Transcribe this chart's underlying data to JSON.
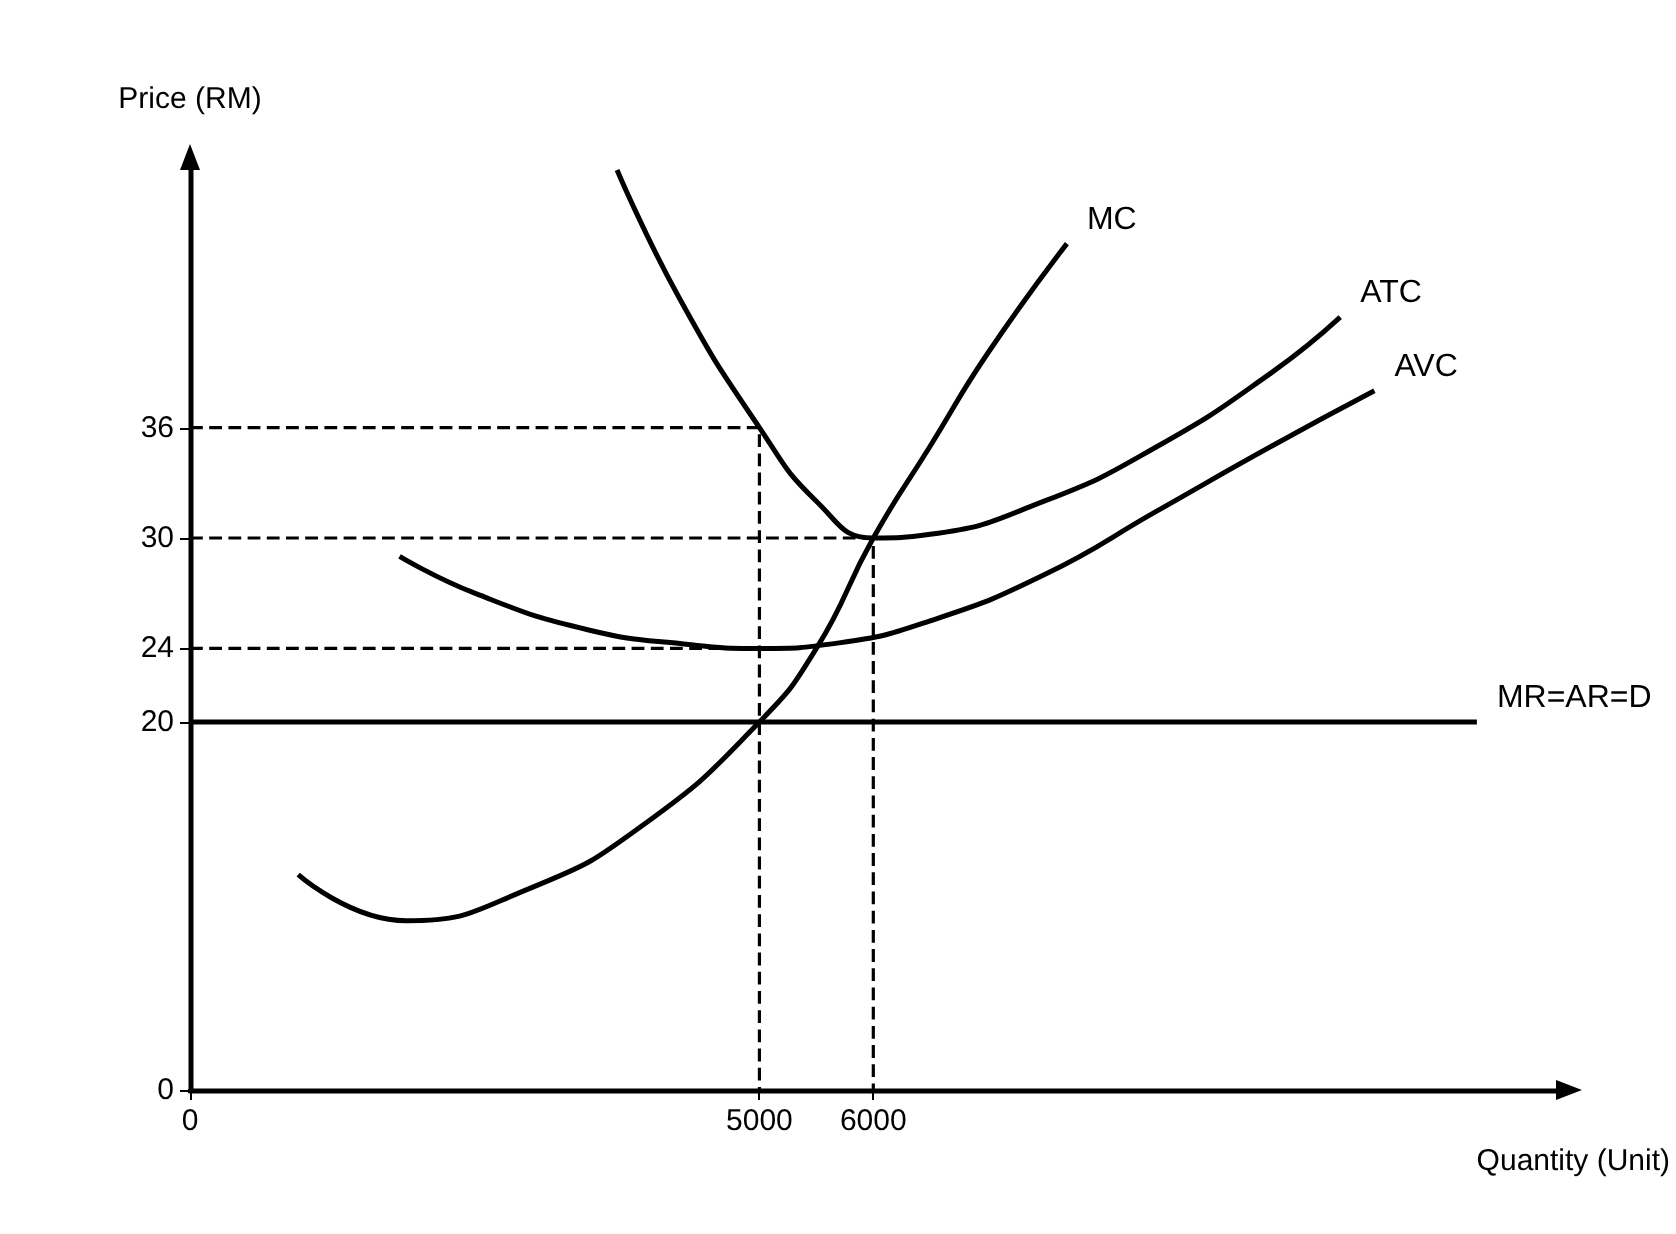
{
  "chart_data": {
    "type": "line",
    "xlabel": "Quantity (Unit)",
    "ylabel": "Price (RM)",
    "xlim": [
      0,
      12000
    ],
    "ylim": [
      0,
      50
    ],
    "xticks": [
      0,
      5000,
      6000
    ],
    "yticks": [
      0,
      20,
      24,
      30,
      36
    ],
    "grid": false,
    "legend": false,
    "marker": "none",
    "line_style": "solid",
    "series": [
      {
        "name": "MC",
        "color": "#000000",
        "x": [
          950,
          1900,
          3000,
          4000,
          5000,
          5500,
          6000,
          6500,
          7000,
          7700
        ],
        "values": [
          11.7,
          9.2,
          11,
          14.5,
          20,
          24,
          30,
          35,
          40,
          46
        ]
      },
      {
        "name": "ATC",
        "color": "#000000",
        "x": [
          3750,
          4300,
          5000,
          5500,
          6000,
          6500,
          7500,
          8500,
          9500,
          10100
        ],
        "values": [
          50,
          43,
          36,
          32,
          30,
          30.2,
          32,
          35,
          39,
          42
        ]
      },
      {
        "name": "AVC",
        "color": "#000000",
        "x": [
          1840,
          2500,
          3500,
          4400,
          5000,
          5700,
          6500,
          7500,
          8500,
          9500,
          10400
        ],
        "values": [
          29,
          27,
          25,
          24.2,
          24,
          24.3,
          25.5,
          28,
          31.5,
          35,
          38
        ]
      },
      {
        "name": "MR=AR=D",
        "color": "#000000",
        "x": [
          0,
          11300
        ],
        "values": [
          20,
          20
        ]
      },
      {
        "color": "#000000",
        "line_style": "dashed",
        "x": [
          0,
          5000,
          5000
        ],
        "values": [
          36,
          36,
          0
        ]
      },
      {
        "color": "#000000",
        "line_style": "dashed",
        "x": [
          0,
          6000,
          6000
        ],
        "values": [
          30,
          30,
          0
        ]
      },
      {
        "color": "#000000",
        "line_style": "dashed",
        "x": [
          0,
          5000
        ],
        "values": [
          24,
          24
        ]
      }
    ]
  }
}
